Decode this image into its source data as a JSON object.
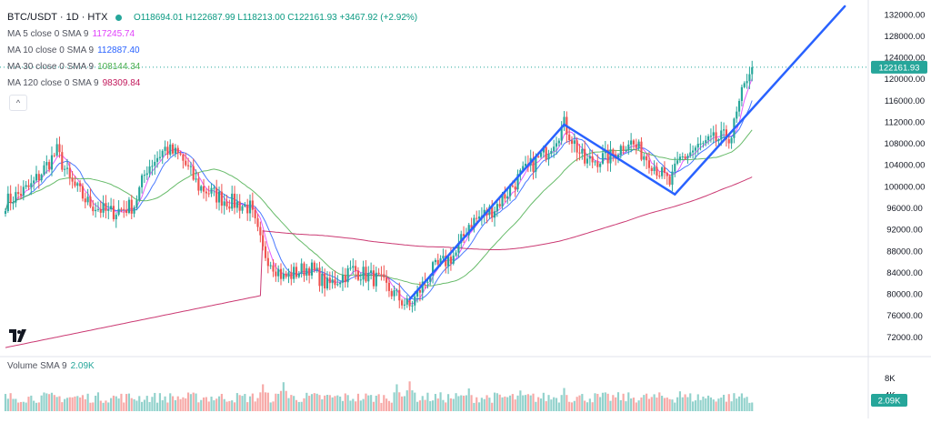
{
  "header": {
    "symbol": "BTC/USDT · 1D · HTX",
    "ohlc": "O118694.01 H122687.99 L118213.00 C122161.93 +3467.92 (+2.92%)"
  },
  "moving_averages": [
    {
      "label": "MA 5 close 0 SMA 9",
      "value": "117245.74",
      "color": "#e040fb"
    },
    {
      "label": "MA 10 close 0 SMA 9",
      "value": "112887.40",
      "color": "#2962ff"
    },
    {
      "label": "MA 30 close 0 SMA 9",
      "value": "108144.34",
      "color": "#4caf50"
    },
    {
      "label": "MA 120 close 0 SMA 9",
      "value": "98309.84",
      "color": "#c2185b"
    }
  ],
  "collapse_button": "^",
  "volume_legend": {
    "label": "Volume SMA 9",
    "value": "2.09K"
  },
  "colors": {
    "up": "#26a69a",
    "down": "#ef5350",
    "trend": "#2962ff",
    "price_tag_bg": "#26a69a",
    "volume_tag_bg": "#26a69a"
  },
  "chart_data": {
    "type": "candlestick",
    "title": "BTC/USDT · 1D · HTX",
    "price_axis": {
      "range": [
        69000,
        134000
      ],
      "ticks": [
        "132000.00",
        "128000.00",
        "124000.00",
        "120000.00",
        "116000.00",
        "112000.00",
        "108000.00",
        "104000.00",
        "100000.00",
        "96000.00",
        "92000.00",
        "88000.00",
        "84000.00",
        "80000.00",
        "76000.00",
        "72000.00"
      ],
      "tick_values": [
        132000,
        128000,
        124000,
        120000,
        116000,
        112000,
        108000,
        104000,
        100000,
        96000,
        92000,
        88000,
        84000,
        80000,
        76000,
        72000
      ]
    },
    "volume_axis": {
      "ticks": [
        "8K",
        "4K"
      ],
      "tick_values": [
        8000,
        4000
      ],
      "max": 11000
    },
    "current_price_label": "122161.93",
    "current_price": 122161.93,
    "current_volume_label": "2.09K",
    "current_volume": 2090,
    "close_path": [
      [
        0,
        97000
      ],
      [
        10,
        100000
      ],
      [
        20,
        106500
      ],
      [
        25,
        101000
      ],
      [
        32,
        97000
      ],
      [
        40,
        95000
      ],
      [
        50,
        96500
      ],
      [
        55,
        103500
      ],
      [
        62,
        107000
      ],
      [
        68,
        105500
      ],
      [
        75,
        100000
      ],
      [
        85,
        97500
      ],
      [
        95,
        96000
      ],
      [
        100,
        88000
      ],
      [
        108,
        83000
      ],
      [
        118,
        85000
      ],
      [
        125,
        81500
      ],
      [
        135,
        84500
      ],
      [
        145,
        82500
      ],
      [
        152,
        79500
      ],
      [
        157,
        77500
      ],
      [
        165,
        84000
      ],
      [
        175,
        87500
      ],
      [
        180,
        93000
      ],
      [
        190,
        96000
      ],
      [
        200,
        102000
      ],
      [
        210,
        106500
      ],
      [
        217,
        111500
      ],
      [
        225,
        104500
      ],
      [
        235,
        105500
      ],
      [
        242,
        108500
      ],
      [
        250,
        105000
      ],
      [
        258,
        100500
      ],
      [
        262,
        105000
      ],
      [
        268,
        107000
      ],
      [
        275,
        108500
      ],
      [
        282,
        109500
      ],
      [
        286,
        117000
      ],
      [
        290,
        122161.93
      ]
    ],
    "moving_average_periods": [
      5,
      10,
      30,
      120
    ],
    "ma120_start": 70000,
    "trendlines": [
      {
        "from": [
          157,
          79000
        ],
        "to": [
          217,
          111500
        ]
      },
      {
        "from": [
          217,
          111500
        ],
        "to": [
          260,
          98500
        ]
      },
      {
        "from": [
          260,
          98500
        ],
        "to": [
          326,
          133500
        ]
      }
    ],
    "volume": {
      "base": 2000,
      "spikes": [
        [
          100,
          6500
        ],
        [
          108,
          7000
        ],
        [
          152,
          6500
        ],
        [
          157,
          7200
        ],
        [
          180,
          5500
        ],
        [
          200,
          5000
        ],
        [
          217,
          5600
        ],
        [
          262,
          4800
        ],
        [
          286,
          4300
        ],
        [
          290,
          2090
        ]
      ]
    }
  }
}
